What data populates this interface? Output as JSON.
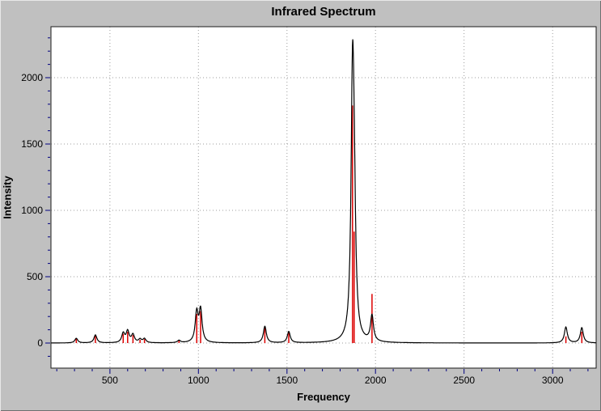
{
  "chart_data": {
    "type": "line",
    "title": "Infrared Spectrum",
    "xlabel": "Frequency",
    "ylabel": "Intensity",
    "xlim": [
      167,
      3246
    ],
    "ylim": [
      -189,
      2384
    ],
    "x_ticks": [
      500,
      1000,
      1500,
      2000,
      2500,
      3000
    ],
    "y_ticks": [
      0,
      500,
      1000,
      1500,
      2000
    ],
    "x_minor_step": 100,
    "y_minor_step": 100,
    "grid": true,
    "legend": "none",
    "lorentzian_hwhm": 10,
    "colors": {
      "envelope": "#000000",
      "sticks": "#dd0000",
      "ticks": "#000080",
      "grid": "#9c9c9c",
      "plot_border": "#1a1a1a",
      "plot_bg": "#ffffff",
      "page_bg": "#c0c0c0",
      "text": "#000000"
    },
    "peaks": [
      {
        "frequency": 310,
        "intensity": 35
      },
      {
        "frequency": 418,
        "intensity": 60
      },
      {
        "frequency": 575,
        "intensity": 70
      },
      {
        "frequency": 600,
        "intensity": 85
      },
      {
        "frequency": 630,
        "intensity": 60
      },
      {
        "frequency": 670,
        "intensity": 25
      },
      {
        "frequency": 695,
        "intensity": 30
      },
      {
        "frequency": 890,
        "intensity": 18
      },
      {
        "frequency": 990,
        "intensity": 220
      },
      {
        "frequency": 1012,
        "intensity": 240
      },
      {
        "frequency": 1375,
        "intensity": 125
      },
      {
        "frequency": 1510,
        "intensity": 85
      },
      {
        "frequency": 1870,
        "intensity": 1790
      },
      {
        "frequency": 1879,
        "intensity": 840
      },
      {
        "frequency": 1980,
        "intensity": 370,
        "envelope_height": 195
      },
      {
        "frequency": 3075,
        "intensity": 50,
        "envelope_height": 120
      },
      {
        "frequency": 3165,
        "intensity": 85,
        "envelope_height": 115
      }
    ]
  }
}
